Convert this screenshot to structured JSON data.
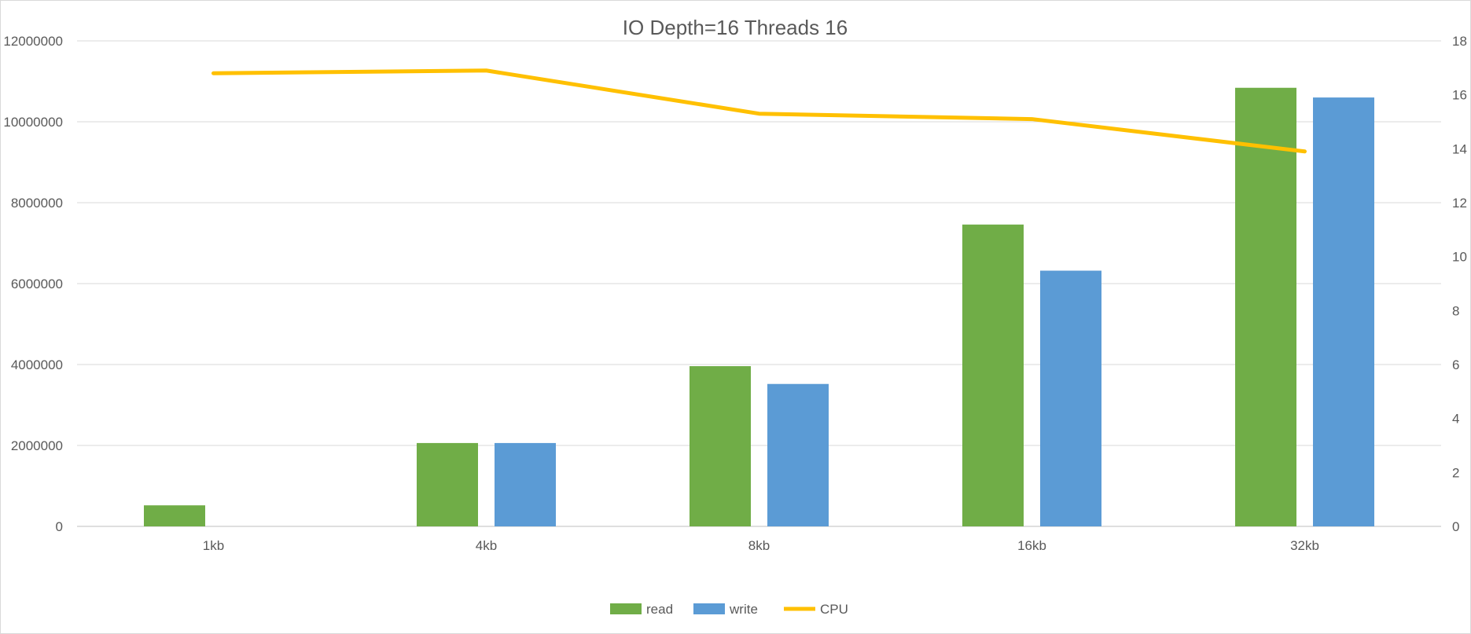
{
  "chart_data": {
    "type": "bar",
    "title": "IO Depth=16   Threads 16",
    "categories": [
      "1kb",
      "4kb",
      "8kb",
      "16kb",
      "32kb"
    ],
    "series": [
      {
        "name": "read",
        "type": "bar",
        "axis": "left",
        "color": "#70AD47",
        "values": [
          520000,
          2060000,
          3960000,
          7460000,
          10840000
        ]
      },
      {
        "name": "write",
        "type": "bar",
        "axis": "left",
        "color": "#5B9BD5",
        "values": [
          0,
          2060000,
          3520000,
          6320000,
          10600000
        ]
      },
      {
        "name": "CPU",
        "type": "line",
        "axis": "right",
        "color": "#FFC000",
        "values": [
          16.8,
          16.9,
          15.3,
          15.1,
          13.9
        ]
      }
    ],
    "y_left": {
      "min": 0,
      "max": 12000000,
      "step": 2000000,
      "ticks": [
        "0",
        "2000000",
        "4000000",
        "6000000",
        "8000000",
        "10000000",
        "12000000"
      ]
    },
    "y_right": {
      "min": 0,
      "max": 18,
      "step": 2,
      "ticks": [
        "0",
        "2",
        "4",
        "6",
        "8",
        "10",
        "12",
        "14",
        "16",
        "18"
      ]
    },
    "xlabel": "",
    "ylabel": "",
    "grid": true,
    "legend": "bottom"
  }
}
